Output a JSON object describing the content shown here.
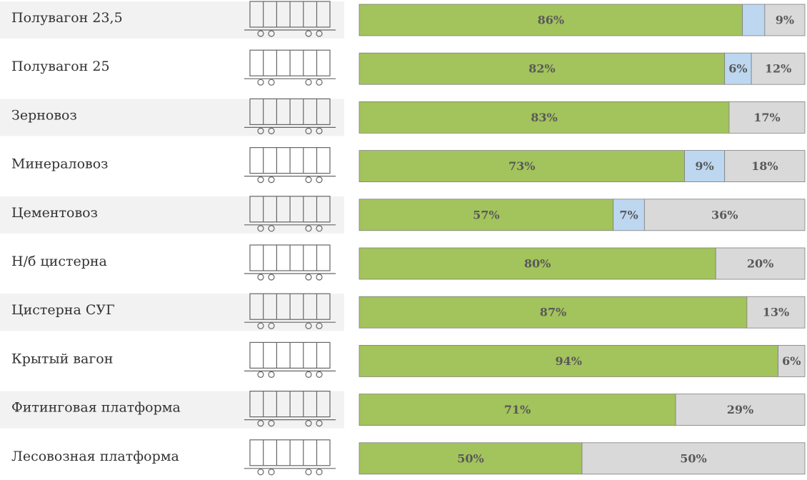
{
  "chart_data": {
    "type": "stacked-bar",
    "categories": [
      "Полувагон 23,5",
      "Полувагон 25",
      "Зерновоз",
      "Минераловоз",
      "Цементовоз",
      "Н/б цистерна",
      "Цистерна СУГ",
      "Крытый вагон",
      "Фитинговая платформа",
      "Лесовозная платформа"
    ],
    "xlim": [
      0,
      100
    ],
    "series": [
      {
        "color": "#a3c35c",
        "values": [
          86,
          82,
          83,
          73,
          57,
          80,
          87,
          94,
          71,
          50
        ],
        "value_labels": [
          "86%",
          "82%",
          "83%",
          "73%",
          "57%",
          "80%",
          "87%",
          "94%",
          "71%",
          "50%"
        ]
      },
      {
        "color": "#bcd7ef",
        "values": [
          5,
          6,
          null,
          9,
          7,
          null,
          null,
          null,
          null,
          null
        ],
        "value_labels": [
          null,
          "6%",
          null,
          "9%",
          "7%",
          null,
          null,
          null,
          null,
          null
        ]
      },
      {
        "color": "#d9d9d9",
        "values": [
          9,
          12,
          17,
          18,
          36,
          20,
          13,
          6,
          29,
          50
        ],
        "value_labels": [
          "9%",
          "12%",
          "17%",
          "18%",
          "36%",
          "20%",
          "13%",
          "6%",
          "29%",
          "50%"
        ]
      }
    ]
  }
}
